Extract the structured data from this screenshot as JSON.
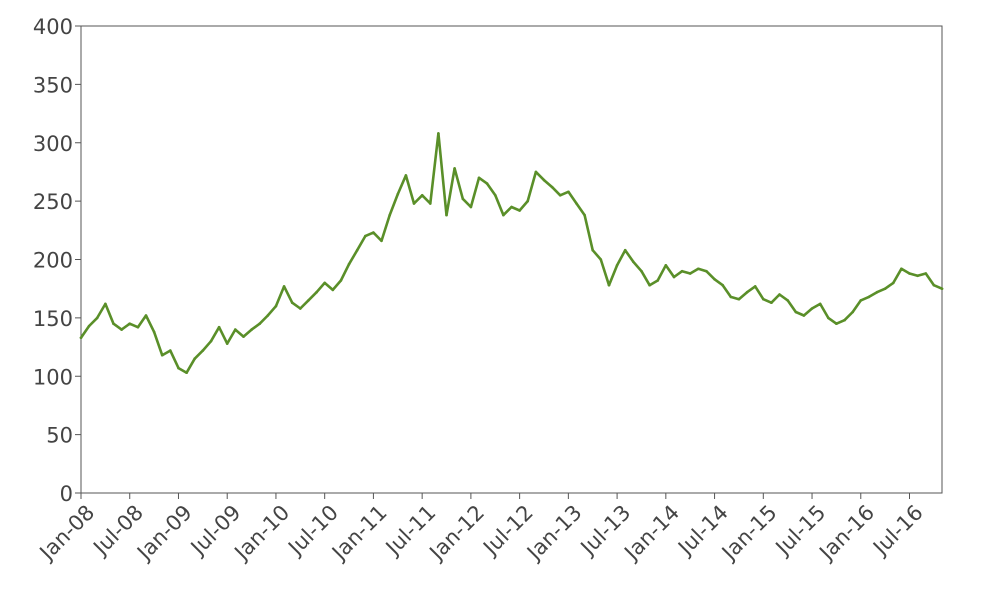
{
  "chart_data": {
    "type": "line",
    "title": "",
    "xlabel": "",
    "ylabel": "",
    "ylim": [
      0,
      400
    ],
    "xlim": [
      "2008-01",
      "2016-11"
    ],
    "grid": false,
    "yticks": [
      0,
      50,
      100,
      150,
      200,
      250,
      300,
      350,
      400
    ],
    "xticks": [
      "Jan-08",
      "Jul-08",
      "Jan-09",
      "Jul-09",
      "Jan-10",
      "Jul-10",
      "Jan-11",
      "Jul-11",
      "Jan-12",
      "Jul-12",
      "Jan-13",
      "Jul-13",
      "Jan-14",
      "Jul-14",
      "Jan-15",
      "Jul-15",
      "Jan-16",
      "Jul-16"
    ],
    "xtick_dates": [
      "2008-01",
      "2008-07",
      "2009-01",
      "2009-07",
      "2010-01",
      "2010-07",
      "2011-01",
      "2011-07",
      "2012-01",
      "2012-07",
      "2013-01",
      "2013-07",
      "2014-01",
      "2014-07",
      "2015-01",
      "2015-07",
      "2016-01",
      "2016-07"
    ],
    "line_color": "#5a8f29",
    "series": [
      {
        "name": "",
        "points": [
          [
            "2008-01",
            133
          ],
          [
            "2008-02",
            143
          ],
          [
            "2008-03",
            150
          ],
          [
            "2008-04",
            162
          ],
          [
            "2008-05",
            145
          ],
          [
            "2008-06",
            140
          ],
          [
            "2008-07",
            145
          ],
          [
            "2008-08",
            142
          ],
          [
            "2008-09",
            152
          ],
          [
            "2008-10",
            138
          ],
          [
            "2008-11",
            118
          ],
          [
            "2008-12",
            122
          ],
          [
            "2009-01",
            107
          ],
          [
            "2009-02",
            103
          ],
          [
            "2009-03",
            115
          ],
          [
            "2009-04",
            122
          ],
          [
            "2009-05",
            130
          ],
          [
            "2009-06",
            142
          ],
          [
            "2009-07",
            128
          ],
          [
            "2009-08",
            140
          ],
          [
            "2009-09",
            134
          ],
          [
            "2009-10",
            140
          ],
          [
            "2009-11",
            145
          ],
          [
            "2009-12",
            152
          ],
          [
            "2010-01",
            160
          ],
          [
            "2010-02",
            177
          ],
          [
            "2010-03",
            163
          ],
          [
            "2010-04",
            158
          ],
          [
            "2010-05",
            165
          ],
          [
            "2010-06",
            172
          ],
          [
            "2010-07",
            180
          ],
          [
            "2010-08",
            174
          ],
          [
            "2010-09",
            182
          ],
          [
            "2010-10",
            196
          ],
          [
            "2010-11",
            208
          ],
          [
            "2010-12",
            220
          ],
          [
            "2011-01",
            223
          ],
          [
            "2011-02",
            216
          ],
          [
            "2011-03",
            238
          ],
          [
            "2011-04",
            256
          ],
          [
            "2011-05",
            272
          ],
          [
            "2011-06",
            248
          ],
          [
            "2011-07",
            255
          ],
          [
            "2011-08",
            248
          ],
          [
            "2011-09",
            308
          ],
          [
            "2011-10",
            238
          ],
          [
            "2011-11",
            278
          ],
          [
            "2011-12",
            252
          ],
          [
            "2012-01",
            245
          ],
          [
            "2012-02",
            270
          ],
          [
            "2012-03",
            265
          ],
          [
            "2012-04",
            255
          ],
          [
            "2012-05",
            238
          ],
          [
            "2012-06",
            245
          ],
          [
            "2012-07",
            242
          ],
          [
            "2012-08",
            250
          ],
          [
            "2012-09",
            275
          ],
          [
            "2012-10",
            268
          ],
          [
            "2012-11",
            262
          ],
          [
            "2012-12",
            255
          ],
          [
            "2013-01",
            258
          ],
          [
            "2013-02",
            248
          ],
          [
            "2013-03",
            238
          ],
          [
            "2013-04",
            208
          ],
          [
            "2013-05",
            200
          ],
          [
            "2013-06",
            178
          ],
          [
            "2013-07",
            195
          ],
          [
            "2013-08",
            208
          ],
          [
            "2013-09",
            198
          ],
          [
            "2013-10",
            190
          ],
          [
            "2013-11",
            178
          ],
          [
            "2013-12",
            182
          ],
          [
            "2014-01",
            195
          ],
          [
            "2014-02",
            185
          ],
          [
            "2014-03",
            190
          ],
          [
            "2014-04",
            188
          ],
          [
            "2014-05",
            192
          ],
          [
            "2014-06",
            190
          ],
          [
            "2014-07",
            183
          ],
          [
            "2014-08",
            178
          ],
          [
            "2014-09",
            168
          ],
          [
            "2014-10",
            166
          ],
          [
            "2014-11",
            172
          ],
          [
            "2014-12",
            177
          ],
          [
            "2015-01",
            166
          ],
          [
            "2015-02",
            163
          ],
          [
            "2015-03",
            170
          ],
          [
            "2015-04",
            165
          ],
          [
            "2015-05",
            155
          ],
          [
            "2015-06",
            152
          ],
          [
            "2015-07",
            158
          ],
          [
            "2015-08",
            162
          ],
          [
            "2015-09",
            150
          ],
          [
            "2015-10",
            145
          ],
          [
            "2015-11",
            148
          ],
          [
            "2015-12",
            155
          ],
          [
            "2016-01",
            165
          ],
          [
            "2016-02",
            168
          ],
          [
            "2016-03",
            172
          ],
          [
            "2016-04",
            175
          ],
          [
            "2016-05",
            180
          ],
          [
            "2016-06",
            192
          ],
          [
            "2016-07",
            188
          ],
          [
            "2016-08",
            186
          ],
          [
            "2016-09",
            188
          ],
          [
            "2016-10",
            178
          ],
          [
            "2016-11",
            175
          ]
        ]
      }
    ]
  }
}
